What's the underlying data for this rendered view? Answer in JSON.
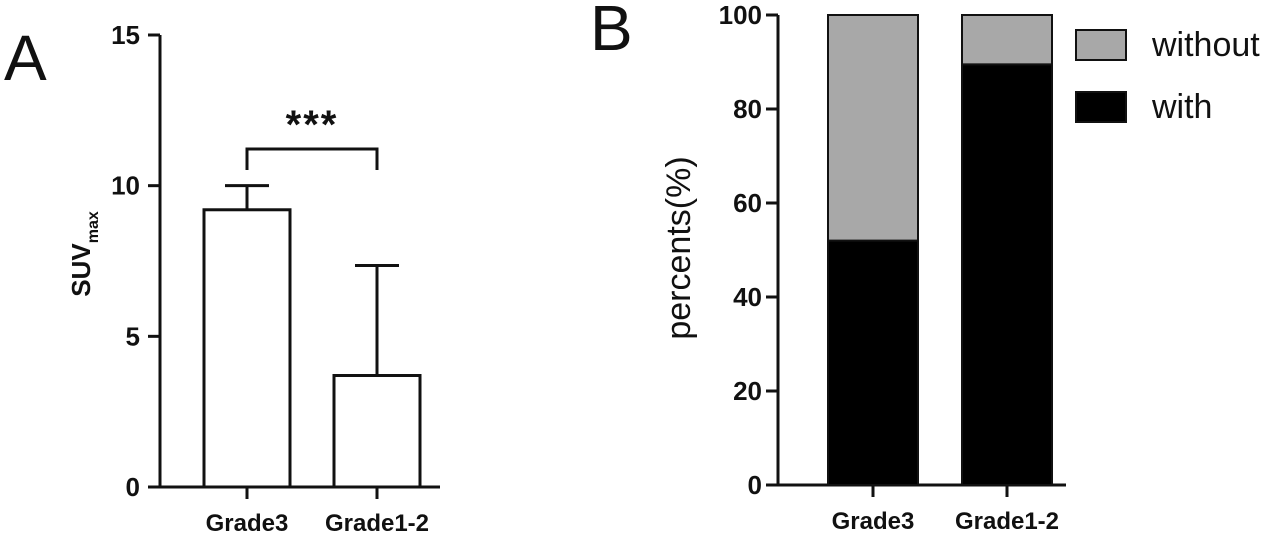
{
  "chart_data": [
    {
      "panel": "A",
      "type": "bar",
      "categories": [
        "Grade3",
        "Grade1-2"
      ],
      "values": [
        9.2,
        3.7
      ],
      "error_upper": [
        10.0,
        7.35
      ],
      "ylabel": "SUV",
      "ylabel_sub": "max",
      "ylim": [
        0,
        15
      ],
      "yticks": [
        "0",
        "5",
        "10",
        "15"
      ],
      "significance": "***",
      "bar_fill": "#ffffff",
      "bar_stroke": "#111111"
    },
    {
      "panel": "B",
      "type": "bar",
      "stacked": true,
      "categories": [
        "Grade3",
        "Grade1-2"
      ],
      "series": [
        {
          "name": "with",
          "values": [
            52,
            89.5
          ],
          "color": "#000000"
        },
        {
          "name": "without",
          "values": [
            48,
            10.5
          ],
          "color": "#a8a8a8"
        }
      ],
      "ylabel": "percents(%)",
      "ylim": [
        0,
        100
      ],
      "yticks": [
        "0",
        "20",
        "40",
        "60",
        "80",
        "100"
      ],
      "legend": [
        "without",
        "with"
      ],
      "legend_position": "top-right"
    }
  ]
}
